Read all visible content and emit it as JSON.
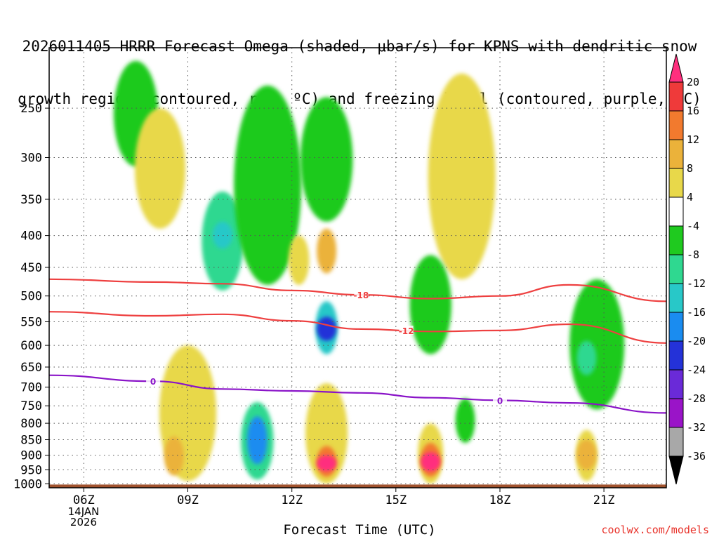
{
  "chart_data": {
    "type": "heatmap",
    "title": "2026011405 HRRR Forecast Omega (shaded, μbar/s) for KPNS with dendritic snow growth region (contoured, red, °C) and freezing level (contoured, purple, °C)",
    "title_lines": [
      "2026011405 HRRR Forecast Omega (shaded, μbar/s) for KPNS with dendritic snow",
      "growth region (contoured, red, ºC) and freezing level (contoured, purple, ºC)"
    ],
    "xlabel": "Forecast Time (UTC)",
    "ylabel": "",
    "x_ticks": [
      "06Z",
      "09Z",
      "12Z",
      "15Z",
      "18Z",
      "21Z"
    ],
    "x_tick_hours": [
      6,
      9,
      12,
      15,
      18,
      21
    ],
    "x_range_hours": [
      5,
      22.8
    ],
    "date_label": [
      "14JAN",
      "2026"
    ],
    "y_ticks": [
      250,
      300,
      350,
      400,
      450,
      500,
      550,
      600,
      650,
      700,
      750,
      800,
      850,
      900,
      950,
      1000
    ],
    "y_range_hpa": [
      200,
      1015
    ],
    "colorbar": {
      "labels": [
        20,
        16,
        12,
        8,
        4,
        -4,
        -8,
        -12,
        -16,
        -20,
        -24,
        -28,
        -32,
        -36
      ],
      "colors": [
        "#ff2f7e",
        "#ef3a3a",
        "#f27a2e",
        "#ebb23a",
        "#e8d84a",
        "#ffffff",
        "#1fca1f",
        "#2fd890",
        "#28c8c8",
        "#1a8cf0",
        "#2432d8",
        "#6a2ad8",
        "#9a14c8",
        "#a8a8a8",
        "#000000"
      ]
    },
    "omega_cells": [
      {
        "hour": 7.5,
        "p_top": 210,
        "p_bot": 310,
        "value": -6
      },
      {
        "hour": 10.0,
        "p_top": 340,
        "p_bot": 490,
        "value": -10
      },
      {
        "hour": 10.0,
        "p_top": 380,
        "p_bot": 420,
        "value": -16
      },
      {
        "hour": 11.3,
        "p_top": 230,
        "p_bot": 480,
        "value": -6
      },
      {
        "hour": 8.2,
        "p_top": 250,
        "p_bot": 390,
        "value": 5
      },
      {
        "hour": 12.2,
        "p_top": 400,
        "p_bot": 480,
        "value": 5
      },
      {
        "hour": 13.0,
        "p_top": 390,
        "p_bot": 460,
        "value": 9
      },
      {
        "hour": 13.0,
        "p_top": 510,
        "p_bot": 620,
        "value": -14
      },
      {
        "hour": 13.0,
        "p_top": 540,
        "p_bot": 590,
        "value": -22
      },
      {
        "hour": 13.0,
        "p_top": 240,
        "p_bot": 380,
        "value": -6
      },
      {
        "hour": 16.9,
        "p_top": 220,
        "p_bot": 470,
        "value": 5
      },
      {
        "hour": 16.0,
        "p_top": 430,
        "p_bot": 620,
        "value": -8
      },
      {
        "hour": 11.0,
        "p_top": 740,
        "p_bot": 985,
        "value": -10
      },
      {
        "hour": 11.0,
        "p_top": 780,
        "p_bot": 930,
        "value": -18
      },
      {
        "hour": 9.0,
        "p_top": 600,
        "p_bot": 990,
        "value": 5
      },
      {
        "hour": 8.6,
        "p_top": 840,
        "p_bot": 970,
        "value": 9
      },
      {
        "hour": 13.0,
        "p_top": 690,
        "p_bot": 1000,
        "value": 6
      },
      {
        "hour": 13.0,
        "p_top": 870,
        "p_bot": 975,
        "value": 14
      },
      {
        "hour": 13.0,
        "p_top": 900,
        "p_bot": 955,
        "value": 22
      },
      {
        "hour": 16.0,
        "p_top": 800,
        "p_bot": 1000,
        "value": 6
      },
      {
        "hour": 16.0,
        "p_top": 860,
        "p_bot": 975,
        "value": 14
      },
      {
        "hour": 16.0,
        "p_top": 890,
        "p_bot": 955,
        "value": 22
      },
      {
        "hour": 17.0,
        "p_top": 730,
        "p_bot": 860,
        "value": -7
      },
      {
        "hour": 20.8,
        "p_top": 470,
        "p_bot": 760,
        "value": -7
      },
      {
        "hour": 20.5,
        "p_top": 590,
        "p_bot": 670,
        "value": -10
      },
      {
        "hour": 20.5,
        "p_top": 820,
        "p_bot": 990,
        "value": 5
      },
      {
        "hour": 20.5,
        "p_top": 850,
        "p_bot": 950,
        "value": 8
      }
    ],
    "series": [
      {
        "name": "-18 °C isotherm (dendritic growth top)",
        "color": "#ee4040",
        "label": "-18",
        "hours": [
          5,
          8,
          10,
          12,
          14,
          16,
          18,
          20,
          22.8
        ],
        "hpa": [
          470,
          475,
          478,
          490,
          498,
          505,
          500,
          480,
          510
        ]
      },
      {
        "name": "-12 °C isotherm (dendritic growth bottom)",
        "color": "#ee4040",
        "label": "-12",
        "hours": [
          5,
          8,
          10,
          12,
          14,
          16,
          18,
          20,
          22.8
        ],
        "hpa": [
          530,
          538,
          535,
          548,
          565,
          570,
          568,
          555,
          595
        ]
      },
      {
        "name": "0 °C freezing level",
        "color": "#8a14c8",
        "label": "0",
        "hours": [
          5,
          8,
          10,
          12,
          14,
          16,
          18,
          20,
          22.8
        ],
        "hpa": [
          670,
          685,
          705,
          710,
          715,
          728,
          735,
          742,
          770
        ]
      }
    ],
    "ground_color": "#a0522d"
  },
  "credit": "coolwx.com/models"
}
